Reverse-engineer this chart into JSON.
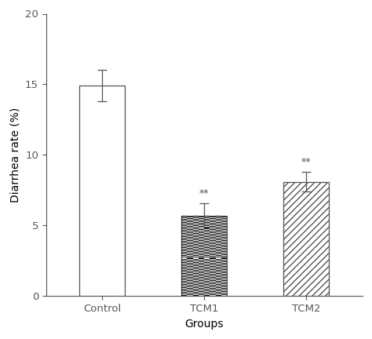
{
  "categories": [
    "Control",
    "TCM1",
    "TCM2"
  ],
  "values": [
    14.9,
    5.7,
    8.1
  ],
  "errors": [
    1.1,
    0.85,
    0.7
  ],
  "ylim": [
    0,
    20
  ],
  "yticks": [
    0,
    5,
    10,
    15,
    20
  ],
  "xlabel": "Groups",
  "ylabel": "Diarrhea rate (%)",
  "background_color": "#ffffff",
  "bar_edge_color": "#555555",
  "error_color": "#555555",
  "significance_labels": [
    "",
    "**",
    "**"
  ],
  "sig_fontsize": 9,
  "axis_fontsize": 10,
  "tick_fontsize": 9.5,
  "bar_width": 0.45,
  "figsize": [
    4.74,
    4.32
  ],
  "dpi": 100
}
